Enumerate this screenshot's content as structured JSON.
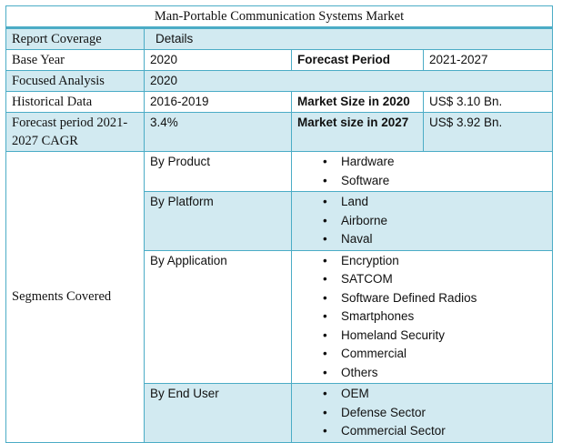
{
  "title": "Man-Portable Communication Systems Market",
  "header": {
    "c1": "Report Coverage",
    "c2": "Details"
  },
  "base_year": {
    "label": "Base Year",
    "value": "2020",
    "label2": "Forecast Period",
    "value2": "2021-2027"
  },
  "focused": {
    "label": "Focused Analysis",
    "value": "2020"
  },
  "historical": {
    "label": "Historical Data",
    "value": "2016-2019",
    "label2": "Market Size in 2020",
    "value2": "US$ 3.10 Bn."
  },
  "forecast": {
    "label": "Forecast period 2021-2027 CAGR",
    "value": "3.4%",
    "label2": "Market size in 2027",
    "value2": "US$ 3.92 Bn."
  },
  "segments": {
    "label": "Segments Covered",
    "groups": [
      {
        "name": "By Product",
        "items": [
          "Hardware",
          "Software"
        ]
      },
      {
        "name": "By Platform",
        "items": [
          "Land",
          "Airborne",
          "Naval"
        ]
      },
      {
        "name": "By Application",
        "items": [
          "Encryption",
          "SATCOM",
          "Software Defined Radios",
          "Smartphones",
          "Homeland Security",
          "Commercial",
          "Others"
        ]
      },
      {
        "name": "By End User",
        "items": [
          "OEM",
          "Defense Sector",
          "Commercial Sector"
        ]
      }
    ]
  }
}
